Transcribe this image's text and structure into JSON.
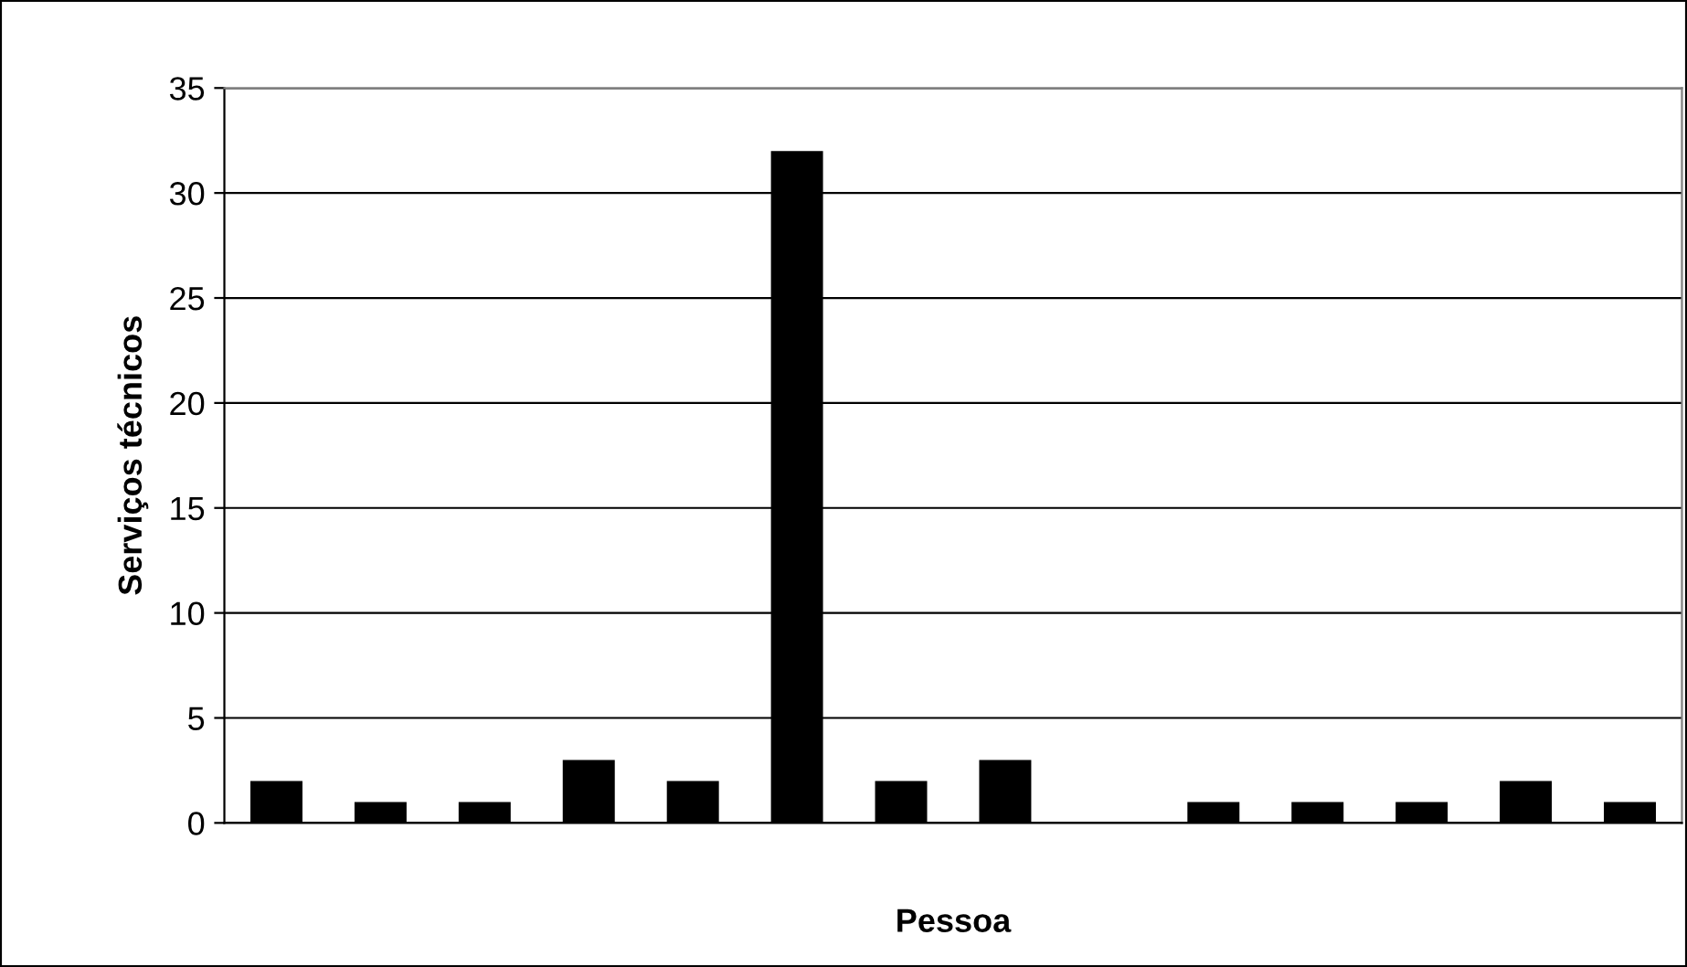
{
  "chart_data": {
    "type": "bar",
    "xlabel": "Pessoa",
    "ylabel": "Serviços técnicos",
    "categories": [
      null,
      null,
      null,
      null,
      null,
      null,
      null,
      null,
      null,
      null,
      null,
      null,
      null,
      null
    ],
    "values": [
      2,
      1,
      1,
      3,
      2,
      32,
      2,
      3,
      0,
      1,
      1,
      1,
      2,
      1
    ],
    "color": "#000000",
    "ylim": [
      0,
      35
    ],
    "yticks": [
      0,
      5,
      10,
      15,
      20,
      25,
      30,
      35
    ],
    "grid": "y",
    "legend": false
  }
}
